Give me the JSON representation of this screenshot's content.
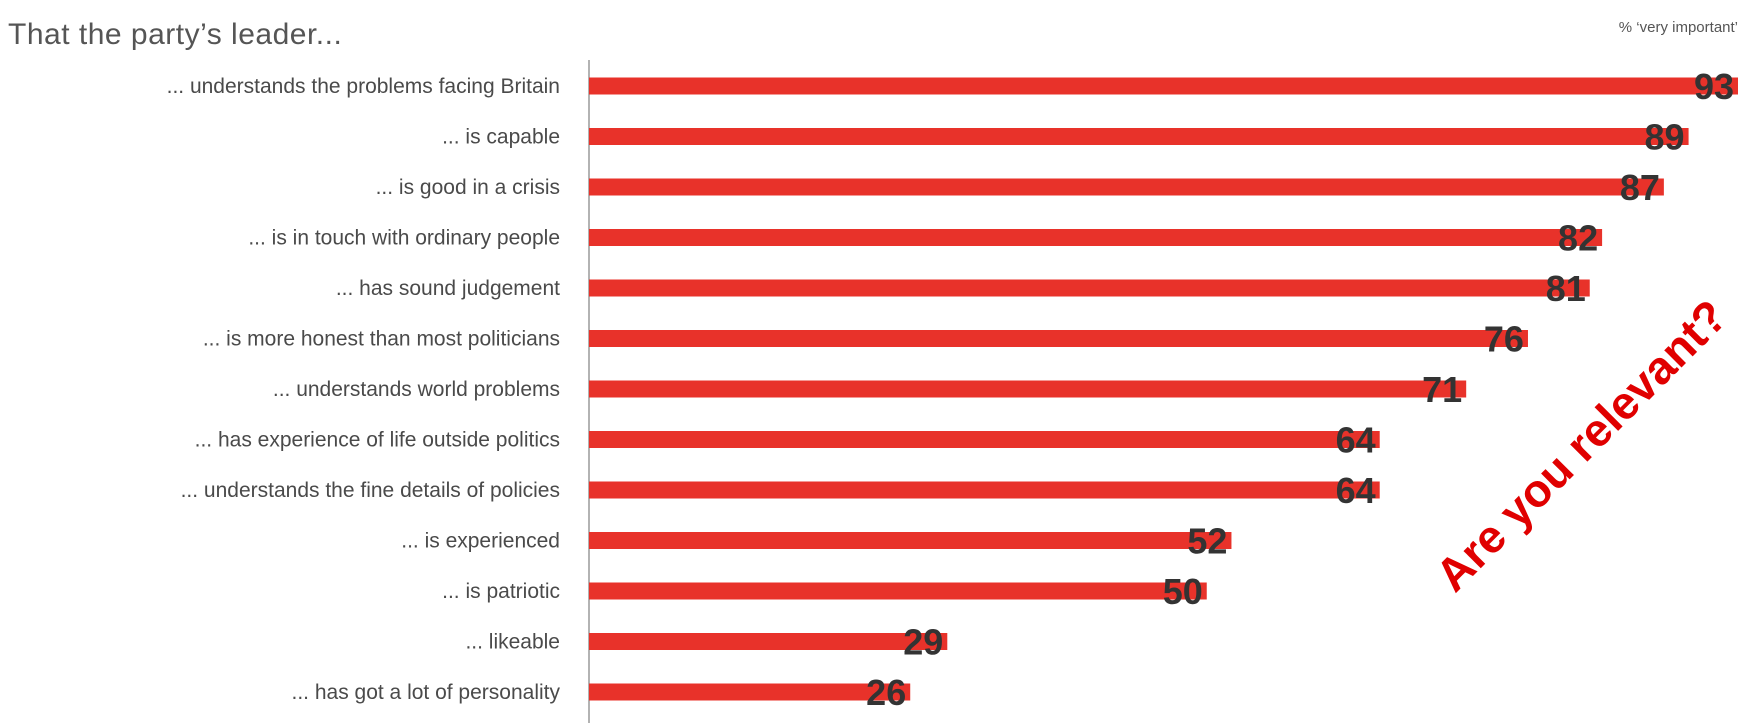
{
  "chart_data": {
    "type": "bar",
    "orientation": "horizontal",
    "title": "That the party’s leader...",
    "unit_label": "% ‘very important’",
    "categories": [
      "... understands the problems facing Britain",
      "... is capable",
      "... is good in a crisis",
      "... is in touch with ordinary people",
      "... has sound judgement",
      "... is more honest than most politicians",
      "... understands world problems",
      "... has experience of life outside politics",
      "... understands the fine details of policies",
      "... is experienced",
      "... is patriotic",
      "... likeable",
      "... has got a lot of personality"
    ],
    "values": [
      93,
      89,
      87,
      82,
      81,
      76,
      71,
      64,
      64,
      52,
      50,
      29,
      26
    ],
    "xlim": [
      0,
      93
    ],
    "grid": false,
    "legend": "none",
    "bar_color": "#e8322a",
    "annotation": "Are you relevant?",
    "annotation_color": "#e00000"
  }
}
